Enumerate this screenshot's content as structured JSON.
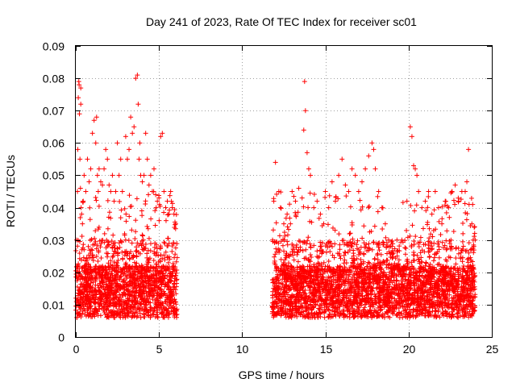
{
  "chart_data": {
    "type": "scatter",
    "title": "Day 241 of 2023, Rate Of TEC Index for receiver sc01",
    "xlabel": "GPS time / hours",
    "ylabel": "ROTI / TECUs",
    "xlim": [
      0,
      25
    ],
    "ylim": [
      0,
      0.09
    ],
    "xticks": [
      0,
      5,
      10,
      15,
      20,
      25
    ],
    "xtick_labels": [
      "0",
      "5",
      "10",
      "15",
      "20",
      "25"
    ],
    "yticks": [
      0,
      0.01,
      0.02,
      0.03,
      0.04,
      0.05,
      0.06,
      0.07,
      0.08,
      0.09
    ],
    "ytick_labels": [
      "0",
      "0.01",
      "0.02",
      "0.03",
      "0.04",
      "0.05",
      "0.06",
      "0.07",
      "0.08",
      "0.09"
    ],
    "grid": true,
    "marker": "+",
    "color": "#ff0000",
    "series": [
      {
        "name": "ROTI",
        "segments": [
          {
            "x_range": [
              0,
              6.1
            ],
            "x": [
              0.05,
              0.1,
              0.12,
              0.15,
              0.18,
              0.2,
              0.22,
              0.25,
              0.28,
              0.3,
              0.3,
              0.32,
              0.35,
              0.4,
              0.45,
              0.5,
              0.6,
              0.7,
              0.8,
              0.9,
              1.0,
              1.1,
              1.2,
              1.25,
              1.3,
              1.35,
              1.4,
              1.5,
              1.6,
              1.7,
              1.8,
              1.9,
              2.0,
              2.1,
              2.2,
              2.3,
              2.4,
              2.5,
              2.6,
              2.7,
              2.8,
              3.0,
              3.1,
              3.2,
              3.3,
              3.4,
              3.5,
              3.6,
              3.7,
              3.75,
              3.8,
              3.85,
              3.9,
              4.0,
              4.1,
              4.2,
              4.3,
              4.4,
              4.5,
              4.6,
              4.7,
              4.8,
              4.9,
              5.0,
              5.1,
              5.2,
              5.3,
              5.4,
              5.5,
              5.6,
              5.7,
              5.8,
              5.9,
              6.0
            ],
            "y": [
              0.03,
              0.045,
              0.058,
              0.074,
              0.079,
              0.078,
              0.069,
              0.055,
              0.046,
              0.072,
              0.077,
              0.04,
              0.038,
              0.035,
              0.042,
              0.05,
              0.045,
              0.055,
              0.048,
              0.052,
              0.063,
              0.067,
              0.06,
              0.068,
              0.05,
              0.045,
              0.052,
              0.048,
              0.047,
              0.052,
              0.058,
              0.055,
              0.047,
              0.045,
              0.05,
              0.042,
              0.045,
              0.06,
              0.05,
              0.055,
              0.045,
              0.062,
              0.055,
              0.058,
              0.068,
              0.063,
              0.065,
              0.08,
              0.081,
              0.072,
              0.055,
              0.06,
              0.05,
              0.048,
              0.05,
              0.063,
              0.055,
              0.047,
              0.05,
              0.045,
              0.052,
              0.044,
              0.042,
              0.043,
              0.062,
              0.063,
              0.045,
              0.04,
              0.042,
              0.038,
              0.045,
              0.04,
              0.038,
              0.035
            ]
          },
          {
            "x_range": [
              11.8,
              24.0
            ],
            "x": [
              11.9,
              12.0,
              12.2,
              12.3,
              12.5,
              12.7,
              12.9,
              13.0,
              13.2,
              13.4,
              13.6,
              13.7,
              13.75,
              13.8,
              13.9,
              14.0,
              14.1,
              14.3,
              14.5,
              14.7,
              14.9,
              15.0,
              15.2,
              15.4,
              15.6,
              15.8,
              16.0,
              16.2,
              16.4,
              16.6,
              16.8,
              17.0,
              17.2,
              17.4,
              17.6,
              17.8,
              17.9,
              18.0,
              18.2,
              18.4,
              18.6,
              18.8,
              19.0,
              19.3,
              19.6,
              19.9,
              20.1,
              20.2,
              20.3,
              20.4,
              20.5,
              20.6,
              20.8,
              21.0,
              21.2,
              21.4,
              21.6,
              21.8,
              22.0,
              22.2,
              22.4,
              22.6,
              22.8,
              23.0,
              23.2,
              23.4,
              23.5,
              23.6,
              23.8,
              24.0
            ],
            "y": [
              0.042,
              0.054,
              0.045,
              0.04,
              0.035,
              0.038,
              0.035,
              0.045,
              0.042,
              0.046,
              0.043,
              0.064,
              0.079,
              0.07,
              0.057,
              0.052,
              0.05,
              0.04,
              0.042,
              0.038,
              0.035,
              0.045,
              0.04,
              0.048,
              0.042,
              0.05,
              0.055,
              0.047,
              0.045,
              0.052,
              0.05,
              0.045,
              0.048,
              0.052,
              0.056,
              0.06,
              0.058,
              0.052,
              0.045,
              0.04,
              0.035,
              0.03,
              0.028,
              0.03,
              0.03,
              0.042,
              0.065,
              0.062,
              0.053,
              0.052,
              0.05,
              0.045,
              0.04,
              0.042,
              0.045,
              0.038,
              0.045,
              0.04,
              0.035,
              0.042,
              0.04,
              0.045,
              0.047,
              0.042,
              0.045,
              0.045,
              0.048,
              0.058,
              0.035,
              0.03
            ]
          }
        ]
      }
    ]
  }
}
